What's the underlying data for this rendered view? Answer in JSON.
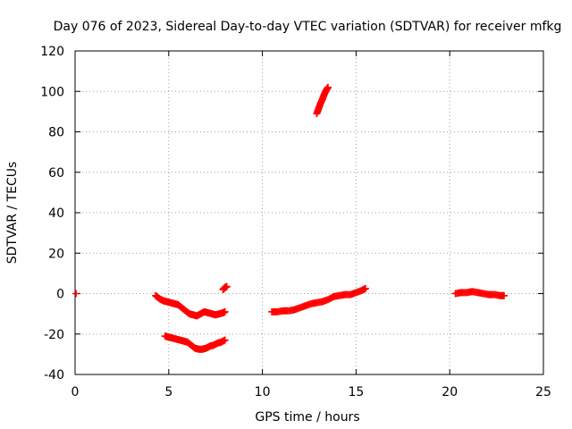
{
  "chart_data": {
    "type": "scatter",
    "title": "Day 076 of 2023, Sidereal Day-to-day VTEC variation (SDTVAR) for receiver mfkg",
    "xlabel": "GPS time / hours",
    "ylabel": "SDTVAR / TECUs",
    "xlim": [
      0,
      25
    ],
    "ylim": [
      -40,
      120
    ],
    "xticks": [
      0,
      5,
      10,
      15,
      20,
      25
    ],
    "yticks": [
      -40,
      -20,
      0,
      20,
      40,
      60,
      80,
      100,
      120
    ],
    "grid": true,
    "marker": "+",
    "color": "#ff0000",
    "series": [
      {
        "name": "isolated-start",
        "x": [
          0.05
        ],
        "y": [
          0
        ]
      },
      {
        "name": "arc-morning-upper",
        "x": [
          4.3,
          4.5,
          4.7,
          4.9,
          5.1,
          5.3,
          5.5,
          5.7,
          5.9,
          6.1,
          6.3,
          6.5,
          6.7,
          6.9,
          7.1,
          7.3,
          7.5,
          7.7,
          7.9,
          8.0
        ],
        "y": [
          -1,
          -2.5,
          -3.5,
          -4,
          -4.5,
          -5,
          -5.5,
          -7,
          -8.5,
          -10,
          -10.5,
          -11,
          -10,
          -9,
          -9.5,
          -10,
          -10.5,
          -10,
          -9.5,
          -9
        ]
      },
      {
        "name": "arc-morning-lower",
        "x": [
          4.8,
          5.0,
          5.2,
          5.4,
          5.6,
          5.8,
          6.0,
          6.2,
          6.4,
          6.6,
          6.8,
          7.0,
          7.2,
          7.4,
          7.6,
          7.8,
          8.0
        ],
        "y": [
          -21,
          -21.5,
          -22,
          -22.5,
          -23,
          -23.5,
          -24,
          -25.5,
          -27,
          -27.5,
          -27.5,
          -27,
          -26,
          -25.5,
          -24.5,
          -24,
          -23
        ]
      },
      {
        "name": "arc-short",
        "x": [
          7.9,
          8.0,
          8.1
        ],
        "y": [
          2,
          3,
          3.5
        ]
      },
      {
        "name": "arc-midday",
        "x": [
          10.5,
          10.8,
          11.1,
          11.4,
          11.7,
          12.0,
          12.3,
          12.6,
          12.9,
          13.2,
          13.5,
          13.8,
          14.1,
          14.4,
          14.7,
          15.0,
          15.3,
          15.5
        ],
        "y": [
          -9,
          -9,
          -8.5,
          -8.5,
          -8,
          -7,
          -6,
          -5,
          -4.5,
          -4,
          -3,
          -1.5,
          -1,
          -0.5,
          -0.5,
          0.5,
          1.5,
          2.5
        ]
      },
      {
        "name": "arc-steep",
        "x": [
          12.9,
          13.0,
          13.1,
          13.2,
          13.3,
          13.4,
          13.5
        ],
        "y": [
          89,
          91.5,
          94,
          96,
          98.5,
          100.5,
          102
        ]
      },
      {
        "name": "arc-evening",
        "x": [
          20.3,
          20.6,
          20.9,
          21.2,
          21.5,
          21.8,
          22.1,
          22.4,
          22.7,
          22.9
        ],
        "y": [
          0,
          0.5,
          0.5,
          1,
          0.5,
          0,
          -0.5,
          -0.5,
          -1,
          -1
        ]
      }
    ]
  }
}
